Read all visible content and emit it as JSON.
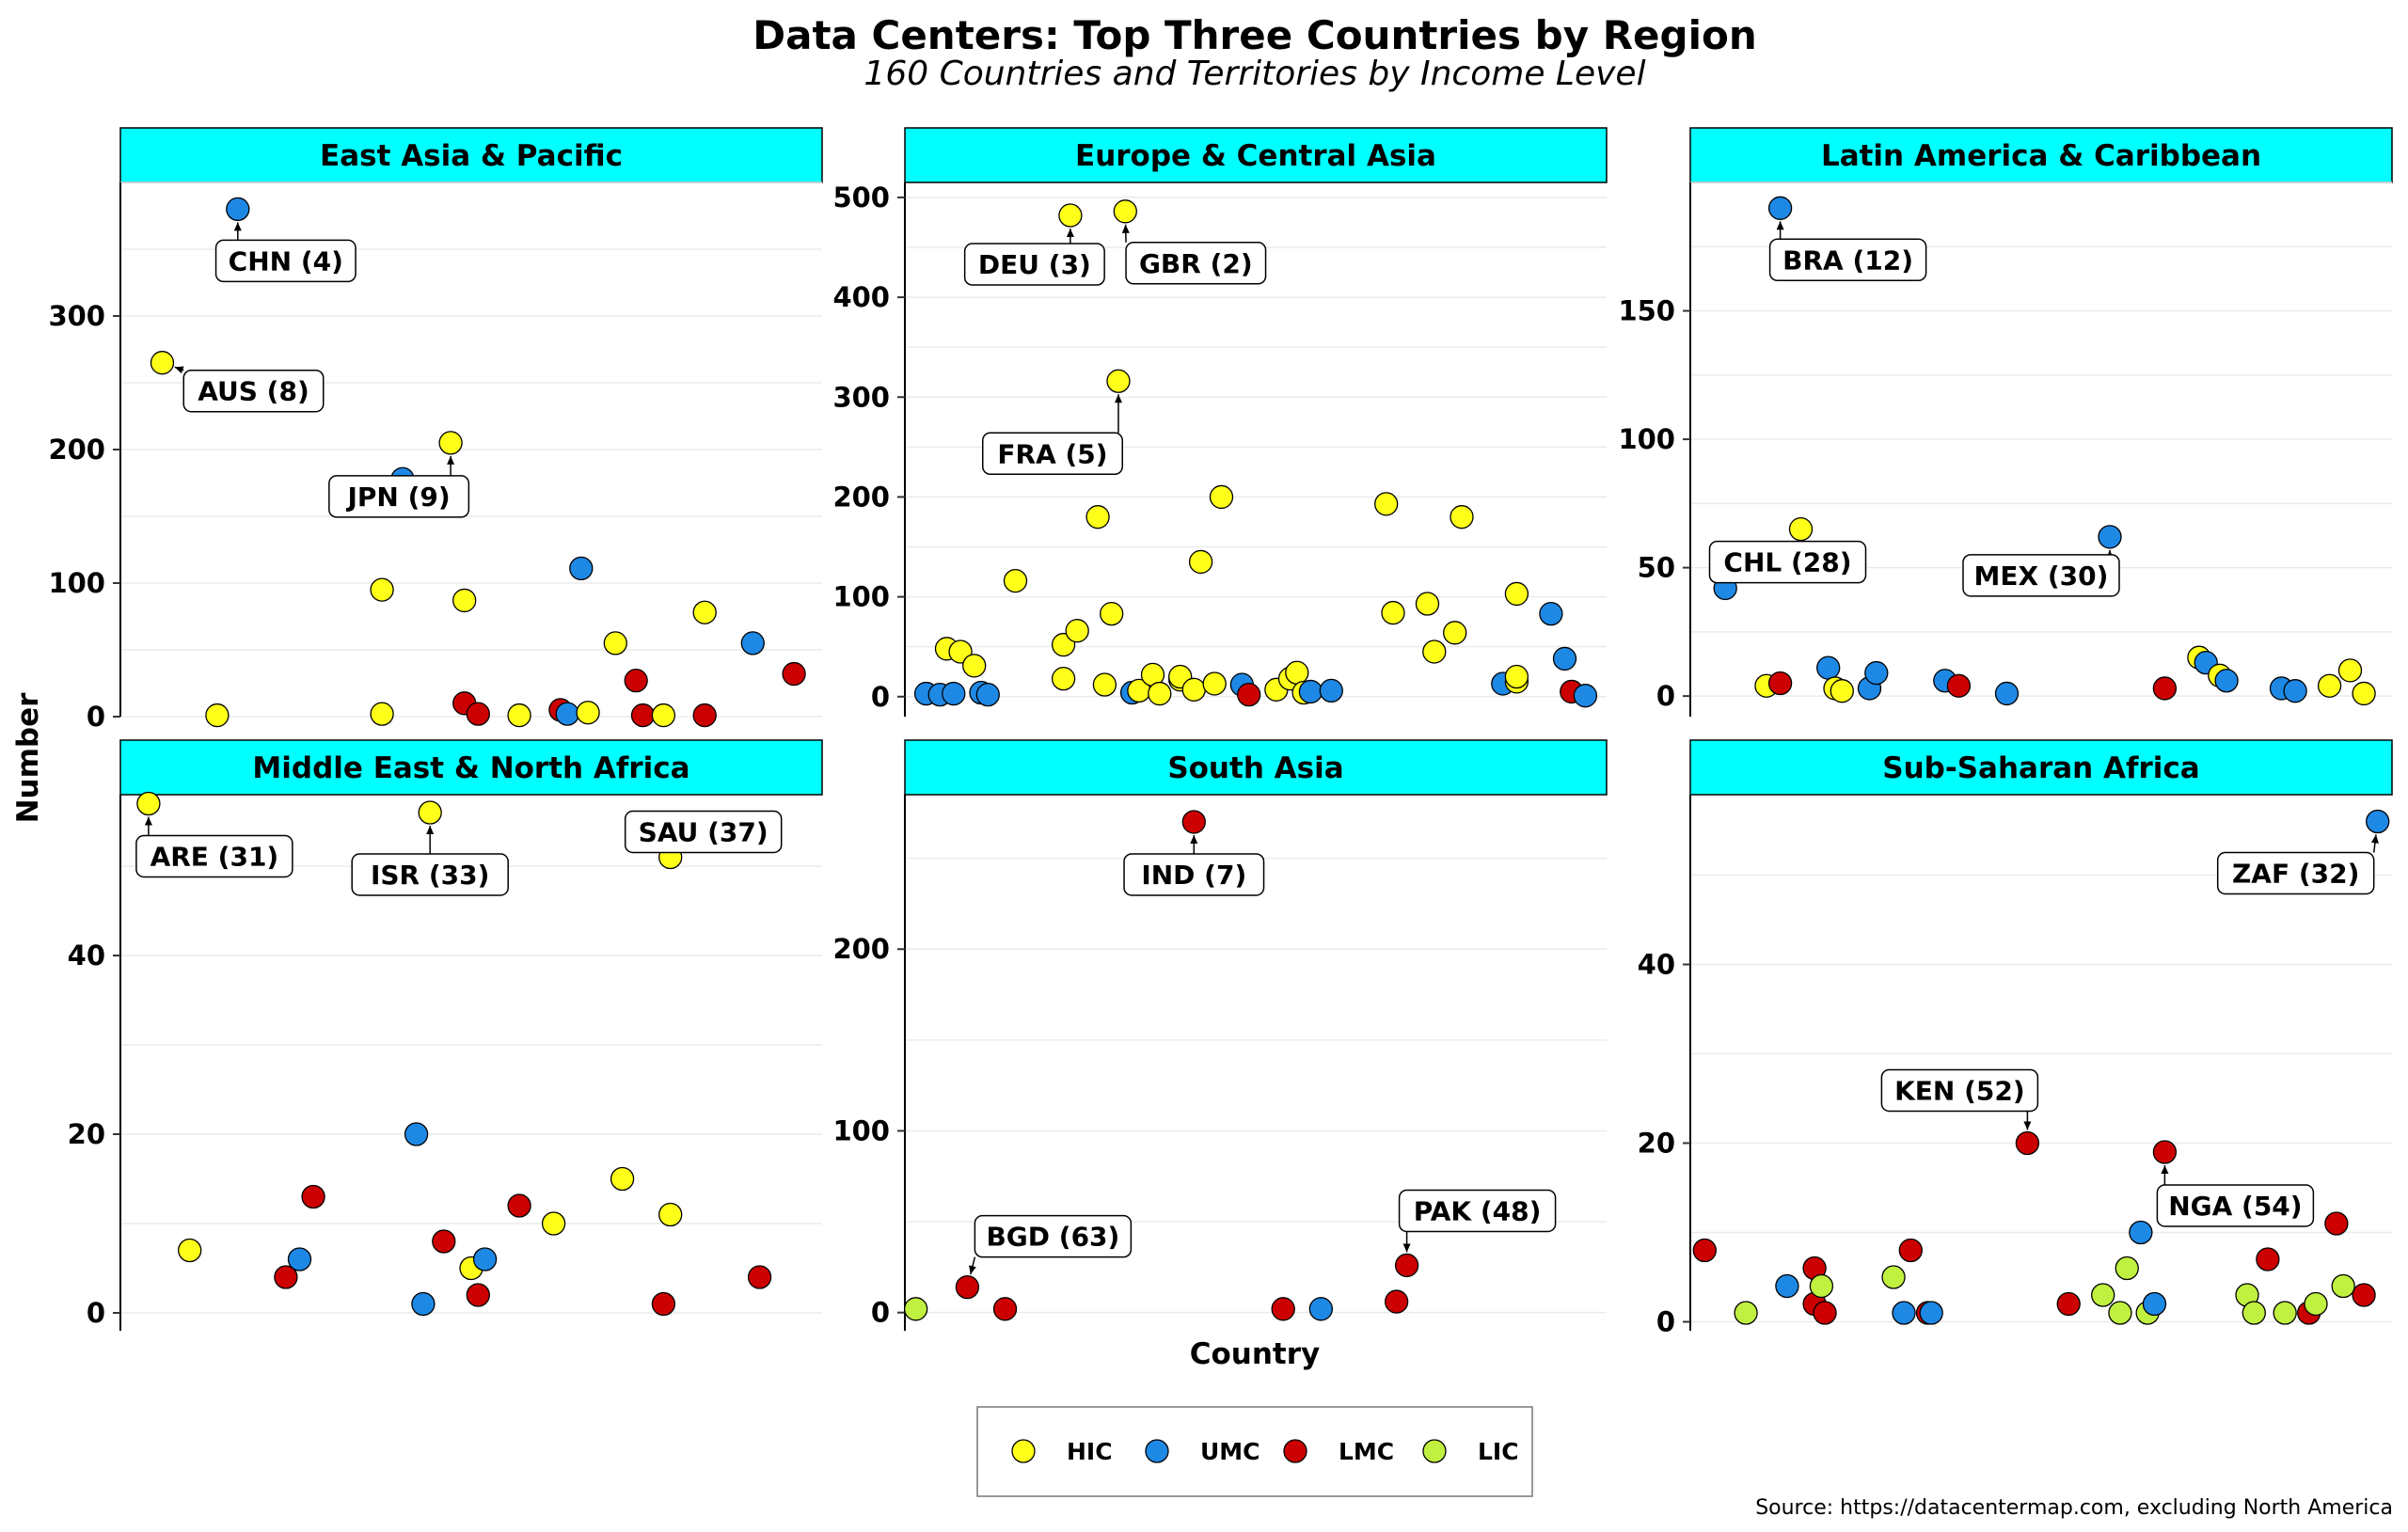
{
  "chart_data": {
    "type": "scatter",
    "title": "Data Centers: Top Three Countries by Region",
    "subtitle": "160 Countries and Territories by Income Level",
    "xlabel": "Country",
    "ylabel": "Number",
    "source": "Source: https://datacentermap.com, excluding North America",
    "legend": {
      "placement": "bottom",
      "entries": [
        {
          "key": "HIC",
          "label": "HIC",
          "color": "#FFFF1A"
        },
        {
          "key": "UMC",
          "label": "UMC",
          "color": "#1E88E5"
        },
        {
          "key": "LMC",
          "label": "LMC",
          "color": "#CC0000"
        },
        {
          "key": "LIC",
          "label": "LIC",
          "color": "#C0F040"
        }
      ]
    },
    "panels": [
      {
        "name": "East Asia & Pacific",
        "ylim": [
          0,
          400
        ],
        "yticks": [
          0,
          100,
          200,
          300
        ],
        "xlim": [
          0,
          1
        ],
        "points": [
          {
            "x": 0.05,
            "y": 265,
            "g": "HIC",
            "label": "AUS (8)"
          },
          {
            "x": 0.16,
            "y": 380,
            "g": "UMC",
            "label": "CHN (4)"
          },
          {
            "x": 0.13,
            "y": 1,
            "g": "HIC"
          },
          {
            "x": 0.37,
            "y": 2,
            "g": "HIC"
          },
          {
            "x": 0.37,
            "y": 95,
            "g": "HIC"
          },
          {
            "x": 0.4,
            "y": 178,
            "g": "UMC"
          },
          {
            "x": 0.47,
            "y": 205,
            "g": "HIC",
            "label": "JPN (9)"
          },
          {
            "x": 0.49,
            "y": 87,
            "g": "HIC"
          },
          {
            "x": 0.49,
            "y": 10,
            "g": "LMC"
          },
          {
            "x": 0.51,
            "y": 2,
            "g": "LMC"
          },
          {
            "x": 0.57,
            "y": 1,
            "g": "HIC"
          },
          {
            "x": 0.63,
            "y": 5,
            "g": "LMC"
          },
          {
            "x": 0.64,
            "y": 2,
            "g": "UMC"
          },
          {
            "x": 0.66,
            "y": 111,
            "g": "UMC"
          },
          {
            "x": 0.67,
            "y": 3,
            "g": "HIC"
          },
          {
            "x": 0.71,
            "y": 55,
            "g": "HIC"
          },
          {
            "x": 0.74,
            "y": 27,
            "g": "LMC"
          },
          {
            "x": 0.75,
            "y": 1,
            "g": "LMC"
          },
          {
            "x": 0.78,
            "y": 1,
            "g": "HIC"
          },
          {
            "x": 0.84,
            "y": 1,
            "g": "LMC"
          },
          {
            "x": 0.84,
            "y": 78,
            "g": "HIC"
          },
          {
            "x": 0.91,
            "y": 55,
            "g": "UMC"
          },
          {
            "x": 0.97,
            "y": 32,
            "g": "LMC"
          }
        ]
      },
      {
        "name": "Europe & Central Asia",
        "ylim": [
          -20,
          515
        ],
        "yticks": [
          0,
          100,
          200,
          300,
          400,
          500
        ],
        "xlim": [
          0,
          1
        ],
        "points": [
          {
            "x": 0.02,
            "y": 3,
            "g": "UMC"
          },
          {
            "x": 0.04,
            "y": 2,
            "g": "UMC"
          },
          {
            "x": 0.06,
            "y": 3,
            "g": "UMC"
          },
          {
            "x": 0.05,
            "y": 48,
            "g": "HIC"
          },
          {
            "x": 0.07,
            "y": 45,
            "g": "HIC"
          },
          {
            "x": 0.09,
            "y": 31,
            "g": "HIC"
          },
          {
            "x": 0.1,
            "y": 4,
            "g": "UMC"
          },
          {
            "x": 0.11,
            "y": 2,
            "g": "UMC"
          },
          {
            "x": 0.15,
            "y": 116,
            "g": "HIC"
          },
          {
            "x": 0.22,
            "y": 18,
            "g": "HIC"
          },
          {
            "x": 0.22,
            "y": 52,
            "g": "HIC"
          },
          {
            "x": 0.24,
            "y": 66,
            "g": "HIC"
          },
          {
            "x": 0.23,
            "y": 482,
            "g": "HIC",
            "label": "DEU (3)"
          },
          {
            "x": 0.27,
            "y": 180,
            "g": "HIC"
          },
          {
            "x": 0.28,
            "y": 12,
            "g": "HIC"
          },
          {
            "x": 0.29,
            "y": 83,
            "g": "HIC"
          },
          {
            "x": 0.3,
            "y": 316,
            "g": "HIC",
            "label": "FRA (5)"
          },
          {
            "x": 0.31,
            "y": 486,
            "g": "HIC",
            "label": "GBR (2)"
          },
          {
            "x": 0.32,
            "y": 4,
            "g": "UMC"
          },
          {
            "x": 0.33,
            "y": 6,
            "g": "HIC"
          },
          {
            "x": 0.35,
            "y": 22,
            "g": "HIC"
          },
          {
            "x": 0.36,
            "y": 3,
            "g": "HIC"
          },
          {
            "x": 0.39,
            "y": 17,
            "g": "HIC"
          },
          {
            "x": 0.39,
            "y": 20,
            "g": "HIC"
          },
          {
            "x": 0.41,
            "y": 7,
            "g": "HIC"
          },
          {
            "x": 0.42,
            "y": 135,
            "g": "HIC"
          },
          {
            "x": 0.44,
            "y": 13,
            "g": "HIC"
          },
          {
            "x": 0.45,
            "y": 200,
            "g": "HIC"
          },
          {
            "x": 0.48,
            "y": 12,
            "g": "UMC"
          },
          {
            "x": 0.49,
            "y": 2,
            "g": "LMC"
          },
          {
            "x": 0.53,
            "y": 7,
            "g": "HIC"
          },
          {
            "x": 0.55,
            "y": 18,
            "g": "HIC"
          },
          {
            "x": 0.56,
            "y": 24,
            "g": "HIC"
          },
          {
            "x": 0.57,
            "y": 4,
            "g": "HIC"
          },
          {
            "x": 0.58,
            "y": 5,
            "g": "UMC"
          },
          {
            "x": 0.61,
            "y": 6,
            "g": "UMC"
          },
          {
            "x": 0.69,
            "y": 193,
            "g": "HIC"
          },
          {
            "x": 0.7,
            "y": 84,
            "g": "HIC"
          },
          {
            "x": 0.75,
            "y": 93,
            "g": "HIC"
          },
          {
            "x": 0.76,
            "y": 45,
            "g": "HIC"
          },
          {
            "x": 0.79,
            "y": 64,
            "g": "HIC"
          },
          {
            "x": 0.8,
            "y": 180,
            "g": "HIC"
          },
          {
            "x": 0.86,
            "y": 13,
            "g": "UMC"
          },
          {
            "x": 0.88,
            "y": 15,
            "g": "HIC"
          },
          {
            "x": 0.88,
            "y": 20,
            "g": "HIC"
          },
          {
            "x": 0.88,
            "y": 103,
            "g": "HIC"
          },
          {
            "x": 0.93,
            "y": 83,
            "g": "UMC"
          },
          {
            "x": 0.95,
            "y": 38,
            "g": "UMC"
          },
          {
            "x": 0.96,
            "y": 5,
            "g": "LMC"
          },
          {
            "x": 0.98,
            "y": 1,
            "g": "UMC"
          }
        ]
      },
      {
        "name": "Latin America & Caribbean",
        "ylim": [
          -8,
          200
        ],
        "yticks": [
          0,
          50,
          100,
          150
        ],
        "xlim": [
          0,
          1
        ],
        "points": [
          {
            "x": 0.04,
            "y": 42,
            "g": "UMC"
          },
          {
            "x": 0.1,
            "y": 4,
            "g": "HIC"
          },
          {
            "x": 0.12,
            "y": 5,
            "g": "LMC"
          },
          {
            "x": 0.12,
            "y": 190,
            "g": "UMC",
            "label": "BRA (12)"
          },
          {
            "x": 0.15,
            "y": 65,
            "g": "HIC",
            "label": "CHL (28)"
          },
          {
            "x": 0.19,
            "y": 11,
            "g": "UMC"
          },
          {
            "x": 0.2,
            "y": 3,
            "g": "HIC"
          },
          {
            "x": 0.21,
            "y": 2,
            "g": "HIC"
          },
          {
            "x": 0.25,
            "y": 3,
            "g": "UMC"
          },
          {
            "x": 0.26,
            "y": 9,
            "g": "UMC"
          },
          {
            "x": 0.36,
            "y": 6,
            "g": "UMC"
          },
          {
            "x": 0.38,
            "y": 4,
            "g": "LMC"
          },
          {
            "x": 0.45,
            "y": 1,
            "g": "UMC"
          },
          {
            "x": 0.6,
            "y": 62,
            "g": "UMC",
            "label": "MEX (30)"
          },
          {
            "x": 0.68,
            "y": 3,
            "g": "LMC"
          },
          {
            "x": 0.73,
            "y": 15,
            "g": "HIC"
          },
          {
            "x": 0.74,
            "y": 13,
            "g": "UMC"
          },
          {
            "x": 0.76,
            "y": 8,
            "g": "HIC"
          },
          {
            "x": 0.77,
            "y": 6,
            "g": "UMC"
          },
          {
            "x": 0.85,
            "y": 3,
            "g": "UMC"
          },
          {
            "x": 0.87,
            "y": 2,
            "g": "UMC"
          },
          {
            "x": 0.92,
            "y": 4,
            "g": "HIC"
          },
          {
            "x": 0.95,
            "y": 10,
            "g": "HIC"
          },
          {
            "x": 0.97,
            "y": 1,
            "g": "HIC"
          }
        ]
      },
      {
        "name": "Middle East & North Africa",
        "ylim": [
          -2,
          58
        ],
        "yticks": [
          0,
          20,
          40
        ],
        "xlim": [
          0,
          1
        ],
        "points": [
          {
            "x": 0.03,
            "y": 57,
            "g": "HIC",
            "label": "ARE (31)"
          },
          {
            "x": 0.09,
            "y": 7,
            "g": "HIC"
          },
          {
            "x": 0.23,
            "y": 4,
            "g": "LMC"
          },
          {
            "x": 0.25,
            "y": 6,
            "g": "UMC"
          },
          {
            "x": 0.27,
            "y": 13,
            "g": "LMC"
          },
          {
            "x": 0.42,
            "y": 20,
            "g": "UMC"
          },
          {
            "x": 0.43,
            "y": 1,
            "g": "UMC"
          },
          {
            "x": 0.44,
            "y": 56,
            "g": "HIC",
            "label": "ISR (33)"
          },
          {
            "x": 0.46,
            "y": 8,
            "g": "LMC"
          },
          {
            "x": 0.5,
            "y": 5,
            "g": "HIC"
          },
          {
            "x": 0.51,
            "y": 2,
            "g": "LMC"
          },
          {
            "x": 0.52,
            "y": 6,
            "g": "UMC"
          },
          {
            "x": 0.57,
            "y": 12,
            "g": "LMC"
          },
          {
            "x": 0.62,
            "y": 10,
            "g": "HIC"
          },
          {
            "x": 0.72,
            "y": 15,
            "g": "HIC"
          },
          {
            "x": 0.79,
            "y": 51,
            "g": "HIC",
            "label": "SAU (37)"
          },
          {
            "x": 0.78,
            "y": 1,
            "g": "LMC"
          },
          {
            "x": 0.79,
            "y": 11,
            "g": "HIC"
          },
          {
            "x": 0.92,
            "y": 4,
            "g": "LMC"
          }
        ]
      },
      {
        "name": "South Asia",
        "ylim": [
          -10,
          285
        ],
        "yticks": [
          0,
          100,
          200
        ],
        "xlim": [
          0,
          1
        ],
        "points": [
          {
            "x": 0.005,
            "y": 2,
            "g": "LIC"
          },
          {
            "x": 0.08,
            "y": 14,
            "g": "LMC",
            "label": "BGD (63)"
          },
          {
            "x": 0.135,
            "y": 2,
            "g": "LMC"
          },
          {
            "x": 0.41,
            "y": 270,
            "g": "LMC",
            "label": "IND (7)"
          },
          {
            "x": 0.54,
            "y": 2,
            "g": "LMC"
          },
          {
            "x": 0.595,
            "y": 2,
            "g": "UMC"
          },
          {
            "x": 0.705,
            "y": 6,
            "g": "LMC"
          },
          {
            "x": 0.72,
            "y": 26,
            "g": "LMC",
            "label": "PAK (48)"
          }
        ]
      },
      {
        "name": "Sub-Saharan Africa",
        "ylim": [
          -1,
          59
        ],
        "yticks": [
          0,
          20,
          40
        ],
        "xlim": [
          0,
          1
        ],
        "points": [
          {
            "x": 0.01,
            "y": 8,
            "g": "LMC"
          },
          {
            "x": 0.07,
            "y": 1,
            "g": "LIC"
          },
          {
            "x": 0.13,
            "y": 4,
            "g": "UMC"
          },
          {
            "x": 0.17,
            "y": 6,
            "g": "LMC"
          },
          {
            "x": 0.17,
            "y": 2,
            "g": "LMC"
          },
          {
            "x": 0.18,
            "y": 4,
            "g": "LIC"
          },
          {
            "x": 0.185,
            "y": 1,
            "g": "LMC"
          },
          {
            "x": 0.285,
            "y": 5,
            "g": "LIC"
          },
          {
            "x": 0.3,
            "y": 1,
            "g": "UMC"
          },
          {
            "x": 0.31,
            "y": 8,
            "g": "LMC"
          },
          {
            "x": 0.335,
            "y": 1,
            "g": "LMC"
          },
          {
            "x": 0.34,
            "y": 1,
            "g": "UMC"
          },
          {
            "x": 0.48,
            "y": 20,
            "g": "LMC",
            "label": "KEN (52)"
          },
          {
            "x": 0.54,
            "y": 2,
            "g": "LMC"
          },
          {
            "x": 0.59,
            "y": 3,
            "g": "LIC"
          },
          {
            "x": 0.615,
            "y": 1,
            "g": "LIC"
          },
          {
            "x": 0.625,
            "y": 6,
            "g": "LIC"
          },
          {
            "x": 0.645,
            "y": 10,
            "g": "UMC"
          },
          {
            "x": 0.655,
            "y": 1,
            "g": "LIC"
          },
          {
            "x": 0.665,
            "y": 2,
            "g": "UMC"
          },
          {
            "x": 0.68,
            "y": 19,
            "g": "LMC",
            "label": "NGA (54)"
          },
          {
            "x": 0.8,
            "y": 3,
            "g": "LIC"
          },
          {
            "x": 0.81,
            "y": 1,
            "g": "LIC"
          },
          {
            "x": 0.83,
            "y": 7,
            "g": "LMC"
          },
          {
            "x": 0.855,
            "y": 1,
            "g": "LIC"
          },
          {
            "x": 0.89,
            "y": 1,
            "g": "LMC"
          },
          {
            "x": 0.9,
            "y": 2,
            "g": "LIC"
          },
          {
            "x": 0.93,
            "y": 11,
            "g": "LMC"
          },
          {
            "x": 0.94,
            "y": 4,
            "g": "LIC"
          },
          {
            "x": 0.97,
            "y": 3,
            "g": "LMC"
          },
          {
            "x": 0.99,
            "y": 56,
            "g": "UMC",
            "label": "ZAF (32)"
          }
        ]
      }
    ]
  }
}
